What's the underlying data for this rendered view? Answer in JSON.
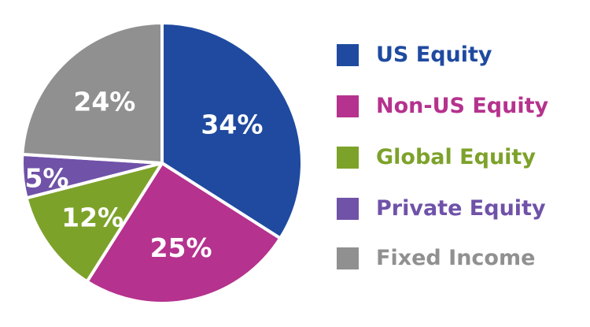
{
  "chart_data": {
    "type": "pie",
    "categories": [
      "US Equity",
      "Non-US Equity",
      "Global Equity",
      "Private Equity",
      "Fixed Income"
    ],
    "values": [
      34,
      25,
      12,
      5,
      24
    ],
    "labels": [
      "34%",
      "25%",
      "12%",
      "5%",
      "24%"
    ],
    "colors": [
      "#1f4aa0",
      "#b5328e",
      "#7da22a",
      "#7052a8",
      "#909090"
    ],
    "legend": "right"
  },
  "legend": {
    "items": [
      {
        "label": "US Equity",
        "color": "#1f4aa0"
      },
      {
        "label": "Non-US Equity",
        "color": "#b5328e"
      },
      {
        "label": "Global Equity",
        "color": "#7da22a"
      },
      {
        "label": "Private Equity",
        "color": "#7052a8"
      },
      {
        "label": "Fixed Income",
        "color": "#909090"
      }
    ]
  }
}
